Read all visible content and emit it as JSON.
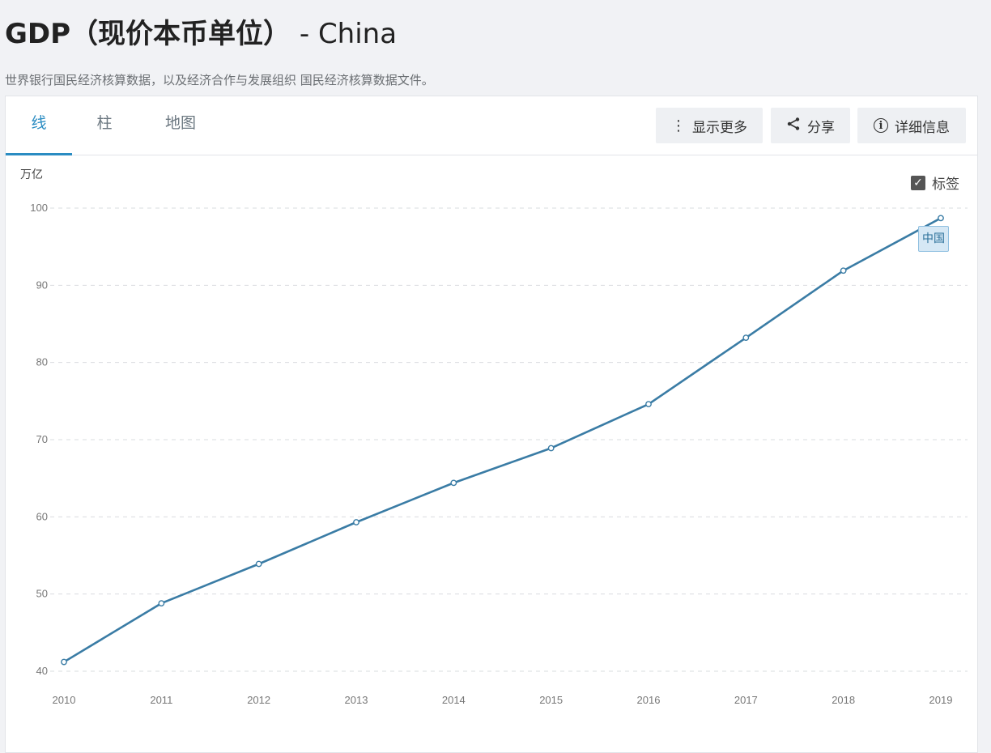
{
  "page": {
    "title_bold": "GDP（现价本币单位）",
    "title_rest": " - China",
    "subtitle": "世界银行国民经济核算数据，以及经济合作与发展组织 国民经济核算数据文件。"
  },
  "tabs": [
    {
      "label": "线",
      "active": true
    },
    {
      "label": "柱",
      "active": false
    },
    {
      "label": "地图",
      "active": false
    }
  ],
  "toolbar": {
    "more_label": "显示更多",
    "share_label": "分享",
    "details_label": "详细信息"
  },
  "labels_toggle": {
    "label": "标签",
    "checked": true
  },
  "colors": {
    "accent": "#2a8cc2",
    "line": "#3a7ca5"
  },
  "chart_data": {
    "type": "line",
    "ylabel": "万亿",
    "x": [
      "2010",
      "2011",
      "2012",
      "2013",
      "2014",
      "2015",
      "2016",
      "2017",
      "2018",
      "2019"
    ],
    "series": [
      {
        "name": "中国",
        "values": [
          41.2,
          48.8,
          53.9,
          59.3,
          64.4,
          68.9,
          74.6,
          83.2,
          91.9,
          98.7
        ]
      }
    ],
    "ylim": [
      40,
      100
    ],
    "yticks": [
      40,
      50,
      60,
      70,
      80,
      90,
      100
    ],
    "grid": true
  }
}
